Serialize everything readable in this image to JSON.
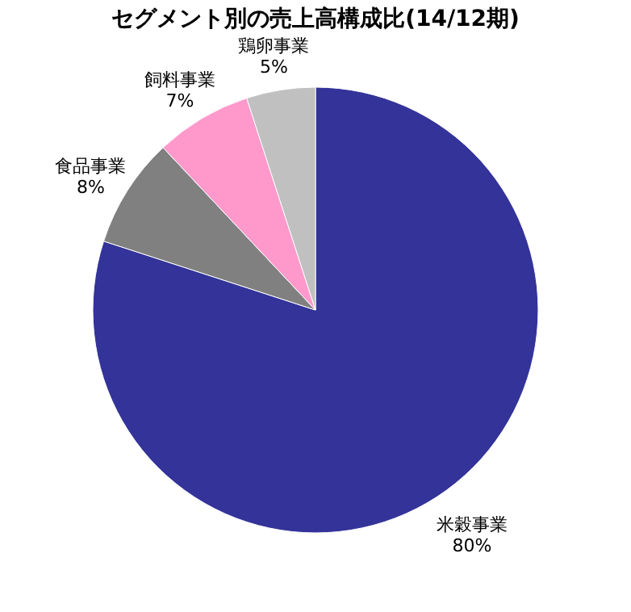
{
  "chart_data": {
    "type": "pie",
    "title": "セグメント別の売上高構成比(14/12期)",
    "categories": [
      "米穀事業",
      "食品事業",
      "飼料事業",
      "鶏卵事業"
    ],
    "values": [
      80,
      8,
      7,
      5
    ],
    "value_labels": [
      "80%",
      "8%",
      "7%",
      "5%"
    ],
    "colors": [
      "#333399",
      "#808080",
      "#ff99cc",
      "#c0c0c0"
    ],
    "legend": false
  }
}
